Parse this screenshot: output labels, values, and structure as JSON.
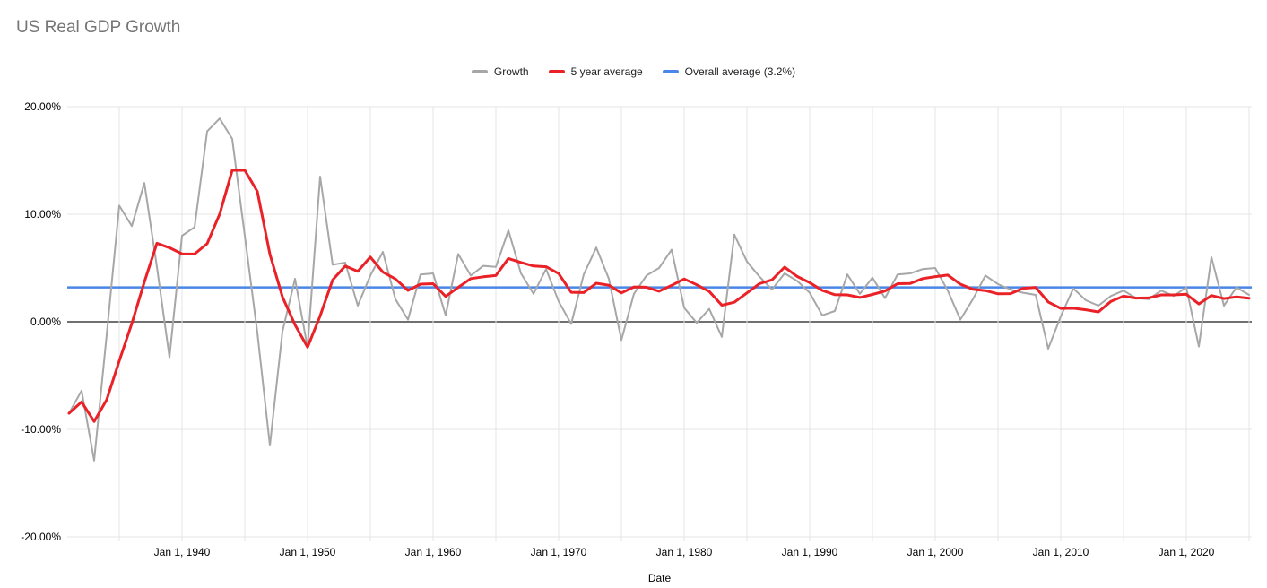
{
  "page": {
    "background": "#ffffff"
  },
  "chart_data": {
    "type": "line",
    "title": "US Real GDP Growth",
    "title_color": "#757575",
    "xlabel": "Date",
    "ylim": [
      -20,
      20
    ],
    "y_ticks_pct": [
      20,
      10,
      0,
      -10,
      -20
    ],
    "y_tick_labels": [
      "20.00%",
      "10.00%",
      "0.00%",
      "-10.00%",
      "-20.00%"
    ],
    "x_tick_years": [
      1940,
      1950,
      1960,
      1970,
      1980,
      1990,
      2000,
      2010,
      2020
    ],
    "x_tick_labels": [
      "Jan 1, 1940",
      "Jan 1, 1950",
      "Jan 1, 1960",
      "Jan 1, 1970",
      "Jan 1, 1980",
      "Jan 1, 1990",
      "Jan 1, 2000",
      "Jan 1, 2010",
      "Jan 1, 2020"
    ],
    "x_grid_step_years": 5,
    "grid_on": true,
    "grid_color": "#e4e4e4",
    "zero_line_color": "#707070",
    "axis_text_color": "#000000",
    "legend_position": "top-center",
    "legend": [
      {
        "label": "Growth",
        "color": "#a7a7a7"
      },
      {
        "label": "5 year average",
        "color": "#ea2127"
      },
      {
        "label": "Overall average (3.2%)",
        "color": "#4a86e8"
      }
    ],
    "overall_average_pct": 3.2,
    "series": [
      {
        "name": "Growth",
        "color": "#a7a7a7",
        "start_year": 1930,
        "values_pct": [
          -8.5,
          -6.4,
          -12.9,
          -1.2,
          10.8,
          8.9,
          12.9,
          5.1,
          -3.3,
          8.0,
          8.8,
          17.7,
          18.9,
          17.0,
          8.0,
          -1.0,
          -11.5,
          -0.9,
          4.0,
          -2.4,
          13.5,
          5.3,
          5.5,
          1.5,
          4.3,
          6.5,
          2.1,
          0.2,
          4.4,
          4.5,
          0.6,
          6.3,
          4.3,
          5.2,
          5.1,
          8.5,
          4.5,
          2.6,
          4.9,
          1.9,
          -0.2,
          4.4,
          6.9,
          4.0,
          -1.7,
          2.6,
          4.3,
          5.0,
          6.7,
          1.3,
          -0.1,
          1.2,
          -1.4,
          8.1,
          5.6,
          4.2,
          3.0,
          4.5,
          3.8,
          2.7,
          0.6,
          1.0,
          4.4,
          2.6,
          4.1,
          2.2,
          4.4,
          4.5,
          4.9,
          5.0,
          2.9,
          0.2,
          2.1,
          4.3,
          3.5,
          3.0,
          2.7,
          2.5,
          -2.5,
          0.5,
          3.1,
          2.0,
          1.5,
          2.4,
          2.9,
          2.2,
          2.1,
          2.9,
          2.4,
          3.2,
          -2.3,
          6.0,
          1.5,
          3.2,
          2.5
        ]
      },
      {
        "name": "5 year average",
        "color": "#ea2127",
        "derived": "trailing 5-year mean of Growth"
      },
      {
        "name": "Overall average (3.2%)",
        "color": "#4a86e8",
        "value_pct": 3.2
      }
    ]
  }
}
